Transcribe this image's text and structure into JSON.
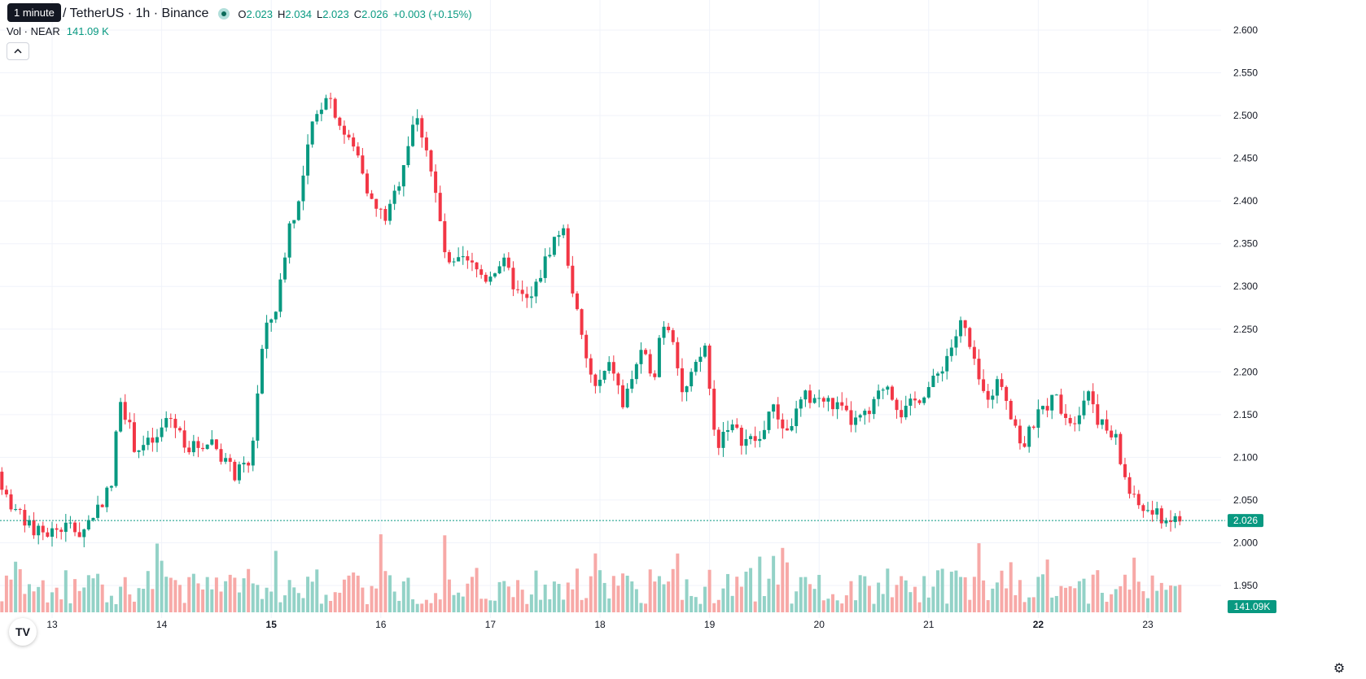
{
  "tooltip": "1 minute",
  "symbol": {
    "title": "/ TetherUS · 1h · Binance",
    "ohlc": {
      "o_label": "O",
      "o": "2.023",
      "h_label": "H",
      "h": "2.034",
      "l_label": "L",
      "l": "2.023",
      "c_label": "C",
      "c": "2.026"
    },
    "change": "+0.003 (+0.15%)"
  },
  "volume_legend": {
    "label": "Vol · NEAR",
    "value": "141.09 K"
  },
  "collapse_icon": "chevron-up-icon",
  "logo_text": "TV",
  "colors": {
    "up": "#089981",
    "down": "#f23645",
    "up_vol": "#93d2c7",
    "down_vol": "#f7a9a7",
    "grid": "#f0f3fa"
  },
  "price_label": "2.026",
  "volume_label": "141.09K",
  "chart_data": {
    "type": "candlestick",
    "timeframe": "1h",
    "x_ticks": [
      "13",
      "14",
      "15",
      "16",
      "17",
      "18",
      "19",
      "20",
      "21",
      "22",
      "23"
    ],
    "x_ticks_bold": [
      "15",
      "22"
    ],
    "y_ticks": [
      "2.600",
      "2.550",
      "2.500",
      "2.450",
      "2.400",
      "2.350",
      "2.300",
      "2.250",
      "2.200",
      "2.150",
      "2.100",
      "2.050",
      "2.000",
      "1.950"
    ],
    "ylim": [
      1.925,
      2.615
    ],
    "last_price": 2.026,
    "series_anchor_points": [
      [
        12.5,
        2.1
      ],
      [
        12.6,
        2.06
      ],
      [
        12.8,
        2.02
      ],
      [
        12.95,
        2.01
      ],
      [
        13.2,
        2.02
      ],
      [
        13.3,
        2.01
      ],
      [
        13.5,
        2.05
      ],
      [
        13.6,
        2.07
      ],
      [
        13.65,
        2.18
      ],
      [
        13.8,
        2.11
      ],
      [
        14.0,
        2.12
      ],
      [
        14.1,
        2.15
      ],
      [
        14.3,
        2.11
      ],
      [
        14.5,
        2.12
      ],
      [
        14.6,
        2.1
      ],
      [
        14.7,
        2.08
      ],
      [
        14.85,
        2.09
      ],
      [
        14.95,
        2.22
      ],
      [
        15.0,
        2.25
      ],
      [
        15.1,
        2.28
      ],
      [
        15.2,
        2.37
      ],
      [
        15.3,
        2.4
      ],
      [
        15.4,
        2.48
      ],
      [
        15.55,
        2.53
      ],
      [
        15.7,
        2.48
      ],
      [
        15.85,
        2.45
      ],
      [
        15.95,
        2.4
      ],
      [
        16.0,
        2.39
      ],
      [
        16.1,
        2.38
      ],
      [
        16.2,
        2.42
      ],
      [
        16.35,
        2.5
      ],
      [
        16.45,
        2.47
      ],
      [
        16.55,
        2.4
      ],
      [
        16.65,
        2.32
      ],
      [
        16.8,
        2.33
      ],
      [
        16.9,
        2.32
      ],
      [
        17.0,
        2.31
      ],
      [
        17.15,
        2.33
      ],
      [
        17.3,
        2.29
      ],
      [
        17.4,
        2.28
      ],
      [
        17.6,
        2.35
      ],
      [
        17.7,
        2.37
      ],
      [
        17.8,
        2.29
      ],
      [
        17.9,
        2.22
      ],
      [
        18.0,
        2.18
      ],
      [
        18.15,
        2.21
      ],
      [
        18.25,
        2.16
      ],
      [
        18.4,
        2.22
      ],
      [
        18.55,
        2.2
      ],
      [
        18.6,
        2.26
      ],
      [
        18.7,
        2.25
      ],
      [
        18.8,
        2.17
      ],
      [
        18.9,
        2.2
      ],
      [
        19.0,
        2.23
      ],
      [
        19.1,
        2.11
      ],
      [
        19.2,
        2.14
      ],
      [
        19.35,
        2.12
      ],
      [
        19.5,
        2.12
      ],
      [
        19.6,
        2.16
      ],
      [
        19.75,
        2.13
      ],
      [
        19.9,
        2.17
      ],
      [
        20.0,
        2.17
      ],
      [
        20.2,
        2.16
      ],
      [
        20.35,
        2.14
      ],
      [
        20.5,
        2.15
      ],
      [
        20.65,
        2.19
      ],
      [
        20.8,
        2.15
      ],
      [
        20.95,
        2.17
      ],
      [
        21.1,
        2.19
      ],
      [
        21.25,
        2.23
      ],
      [
        21.35,
        2.26
      ],
      [
        21.45,
        2.21
      ],
      [
        21.55,
        2.17
      ],
      [
        21.7,
        2.19
      ],
      [
        21.8,
        2.15
      ],
      [
        21.9,
        2.11
      ],
      [
        22.0,
        2.14
      ],
      [
        22.1,
        2.16
      ],
      [
        22.2,
        2.17
      ],
      [
        22.35,
        2.14
      ],
      [
        22.5,
        2.18
      ],
      [
        22.6,
        2.14
      ],
      [
        22.75,
        2.12
      ],
      [
        22.8,
        2.09
      ],
      [
        22.9,
        2.05
      ],
      [
        23.0,
        2.04
      ],
      [
        23.15,
        2.03
      ],
      [
        23.3,
        2.026
      ]
    ]
  }
}
